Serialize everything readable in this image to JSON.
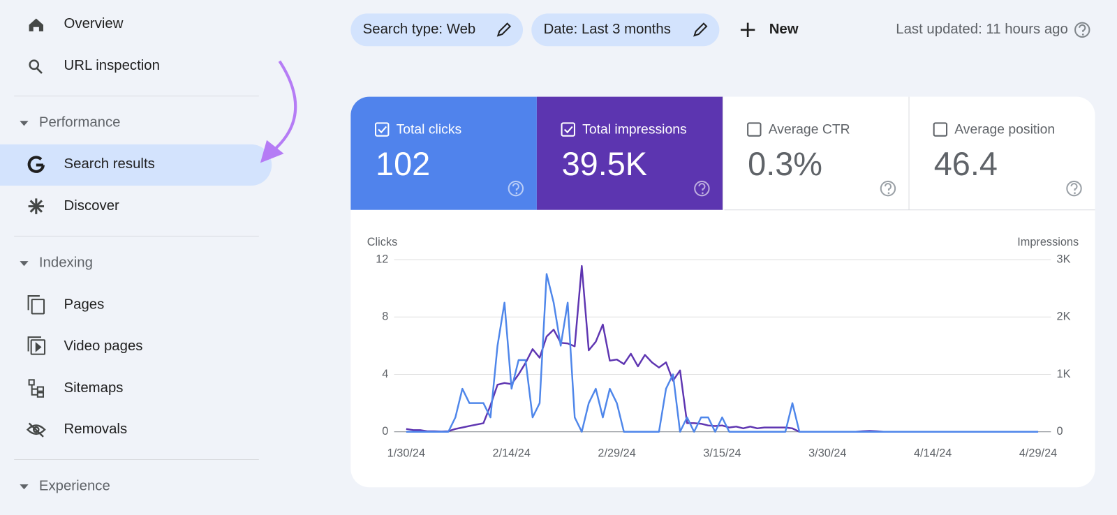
{
  "sidebar": {
    "top": [
      "Overview",
      "URL inspection"
    ],
    "sections": [
      {
        "title": "Performance",
        "items": [
          "Search results",
          "Discover"
        ]
      },
      {
        "title": "Indexing",
        "items": [
          "Pages",
          "Video pages",
          "Sitemaps",
          "Removals"
        ]
      },
      {
        "title": "Experience"
      }
    ]
  },
  "toolbar": {
    "filters": [
      "Search type: Web",
      "Date: Last 3 months"
    ],
    "new": "New",
    "last_updated": "Last updated: 11 hours ago"
  },
  "metrics": [
    {
      "label": "Total clicks",
      "value": "102",
      "checked": true,
      "color": "#5083ec"
    },
    {
      "label": "Total impressions",
      "value": "39.5K",
      "checked": true,
      "color": "#5c35b0"
    },
    {
      "label": "Average CTR",
      "value": "0.3%",
      "checked": false
    },
    {
      "label": "Average position",
      "value": "46.4",
      "checked": false
    }
  ],
  "chart_data": {
    "type": "line",
    "ylabel": "Clicks",
    "y2label": "Impressions",
    "x": [
      "1/30/24",
      "1/31/24",
      "2/1/24",
      "2/2/24",
      "2/3/24",
      "2/4/24",
      "2/5/24",
      "2/6/24",
      "2/7/24",
      "2/8/24",
      "2/9/24",
      "2/10/24",
      "2/11/24",
      "2/12/24",
      "2/13/24",
      "2/14/24",
      "2/15/24",
      "2/16/24",
      "2/17/24",
      "2/18/24",
      "2/19/24",
      "2/20/24",
      "2/21/24",
      "2/22/24",
      "2/23/24",
      "2/24/24",
      "2/25/24",
      "2/26/24",
      "2/27/24",
      "2/28/24",
      "2/29/24",
      "3/1/24",
      "3/2/24",
      "3/3/24",
      "3/4/24",
      "3/5/24",
      "3/6/24",
      "3/7/24",
      "3/8/24",
      "3/9/24",
      "3/10/24",
      "3/11/24",
      "3/12/24",
      "3/13/24",
      "3/14/24",
      "3/15/24",
      "3/16/24",
      "3/17/24",
      "3/18/24",
      "3/19/24",
      "3/20/24",
      "3/21/24",
      "3/22/24",
      "3/23/24",
      "3/24/24",
      "3/25/24",
      "3/26/24",
      "3/27/24",
      "3/28/24",
      "3/29/24",
      "3/30/24",
      "3/31/24",
      "4/1/24",
      "4/2/24",
      "4/3/24",
      "4/4/24",
      "4/5/24",
      "4/6/24",
      "4/7/24",
      "4/8/24",
      "4/9/24",
      "4/10/24",
      "4/11/24",
      "4/12/24",
      "4/13/24",
      "4/14/24",
      "4/15/24",
      "4/16/24",
      "4/17/24",
      "4/18/24",
      "4/19/24",
      "4/20/24",
      "4/21/24",
      "4/22/24",
      "4/23/24",
      "4/24/24",
      "4/25/24",
      "4/26/24",
      "4/27/24",
      "4/28/24",
      "4/29/24"
    ],
    "xticks": [
      "1/30/24",
      "2/14/24",
      "2/29/24",
      "3/15/24",
      "3/30/24",
      "4/14/24",
      "4/29/24"
    ],
    "ylim": [
      0,
      12
    ],
    "yticks": [
      0,
      4,
      8,
      12
    ],
    "y2lim": [
      0,
      3000
    ],
    "y2ticks": [
      0,
      {
        "value": 1000,
        "label": "1K"
      },
      {
        "value": 2000,
        "label": "2K"
      },
      {
        "value": 3000,
        "label": "3K"
      }
    ],
    "grid": true,
    "series": [
      {
        "color": "#5e35b1",
        "axis": "y2",
        "values": [
          50,
          30,
          30,
          10,
          10,
          5,
          10,
          50,
          75,
          100,
          125,
          150,
          460,
          820,
          850,
          830,
          1000,
          1200,
          1440,
          1290,
          1660,
          1780,
          1550,
          1540,
          1490,
          2890,
          1420,
          1570,
          1870,
          1240,
          1260,
          1180,
          1360,
          1140,
          1340,
          1210,
          1120,
          1210,
          890,
          1070,
          150,
          150,
          140,
          110,
          100,
          110,
          75,
          90,
          60,
          90,
          60,
          75,
          75,
          75,
          75,
          60,
          0,
          0,
          0,
          0,
          0,
          0,
          0,
          0,
          0,
          10,
          15,
          10,
          0,
          0,
          0,
          0,
          0,
          0,
          0,
          0,
          0,
          0,
          0,
          0,
          0,
          0,
          0,
          0,
          0,
          0,
          0,
          0,
          0,
          0,
          0
        ]
      },
      {
        "color": "#4e86ea",
        "values": [
          0,
          0,
          0,
          0,
          0,
          0,
          0,
          1,
          3,
          2,
          2,
          2,
          1,
          6,
          9,
          3,
          5,
          5,
          1,
          2,
          11,
          9,
          6,
          9,
          1,
          0,
          2,
          3,
          1,
          3,
          2,
          0,
          0,
          0,
          0,
          0,
          0,
          3,
          4,
          0,
          1,
          0,
          1,
          1,
          0,
          1,
          0,
          0,
          0,
          0,
          0,
          0,
          0,
          0,
          0,
          2,
          0,
          0,
          0,
          0,
          0,
          0,
          0,
          0,
          0,
          0,
          0,
          0,
          0,
          0,
          0,
          0,
          0,
          0,
          0,
          0,
          0,
          0,
          0,
          0,
          0,
          0,
          0,
          0,
          0,
          0,
          0,
          0,
          0,
          0,
          0
        ]
      }
    ]
  }
}
